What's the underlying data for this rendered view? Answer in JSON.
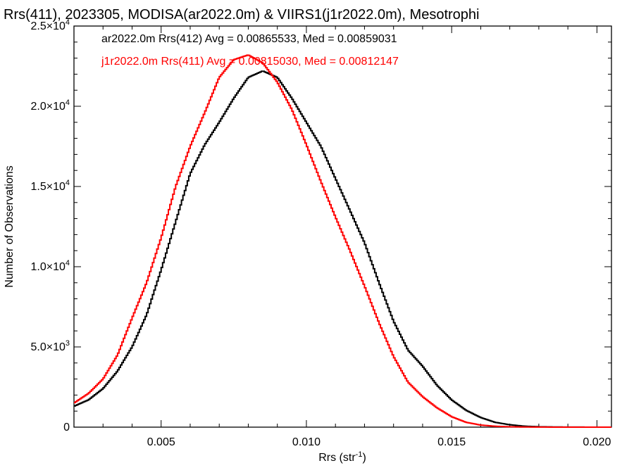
{
  "chart_data": {
    "type": "line",
    "title": "Rrs(411), 2023305, MODISA(ar2022.0m) & VIIRS1(j1r2022.0m), Mesotrophi",
    "xlabel": "Rrs (str",
    "xlabel_sup": "-1",
    "xlabel_end": ")",
    "ylabel": "Number of Observations",
    "xlim": [
      0.002,
      0.0205
    ],
    "ylim": [
      0,
      25000
    ],
    "x_ticks": [
      0.005,
      0.01,
      0.015,
      0.02
    ],
    "x_tick_labels": [
      "0.005",
      "0.010",
      "0.015",
      "0.020"
    ],
    "y_ticks": [
      0,
      5000,
      10000,
      15000,
      20000,
      25000
    ],
    "y_tick_labels": [
      {
        "mant": "0",
        "exp": ""
      },
      {
        "mant": "5.0×10",
        "exp": "3"
      },
      {
        "mant": "1.0×10",
        "exp": "4"
      },
      {
        "mant": "1.5×10",
        "exp": "4"
      },
      {
        "mant": "2.0×10",
        "exp": "4"
      },
      {
        "mant": "2.5×10",
        "exp": "4"
      }
    ],
    "grid": false,
    "legend_placement": "top-left",
    "series": [
      {
        "name": "ar2022.0m Rrs(412) Avg = 0.00865533, Med = 0.00859031",
        "color": "#000000",
        "x": [
          0.002,
          0.0025,
          0.003,
          0.0035,
          0.004,
          0.0045,
          0.005,
          0.0055,
          0.006,
          0.0065,
          0.007,
          0.0075,
          0.008,
          0.0085,
          0.009,
          0.0095,
          0.01,
          0.0105,
          0.011,
          0.0115,
          0.012,
          0.0125,
          0.013,
          0.0135,
          0.014,
          0.0145,
          0.015,
          0.0155,
          0.016,
          0.0165,
          0.017,
          0.0175,
          0.018,
          0.0185,
          0.019,
          0.0195,
          0.02,
          0.0205
        ],
        "y": [
          1300,
          1700,
          2400,
          3500,
          5000,
          7000,
          9800,
          12800,
          15800,
          17600,
          19000,
          20500,
          21800,
          22200,
          21800,
          20500,
          19000,
          17500,
          15500,
          13500,
          11500,
          9000,
          6600,
          4800,
          3800,
          2600,
          1700,
          1050,
          600,
          300,
          150,
          60,
          25,
          12,
          6,
          3,
          2,
          0
        ]
      },
      {
        "name": "j1r2022.0m Rrs(411) Avg = 0.00815030, Med = 0.00812147",
        "color": "#ff0000",
        "x": [
          0.002,
          0.0025,
          0.003,
          0.0035,
          0.004,
          0.0045,
          0.005,
          0.0055,
          0.006,
          0.0065,
          0.007,
          0.0075,
          0.008,
          0.0085,
          0.009,
          0.0095,
          0.01,
          0.0105,
          0.011,
          0.0115,
          0.012,
          0.0125,
          0.013,
          0.0135,
          0.014,
          0.0145,
          0.015,
          0.0155,
          0.016,
          0.0165,
          0.017,
          0.0175,
          0.018,
          0.0185,
          0.019,
          0.0195,
          0.02,
          0.0205
        ],
        "y": [
          1500,
          2100,
          3000,
          4500,
          6800,
          9000,
          11800,
          15000,
          17500,
          19600,
          21800,
          22900,
          23200,
          22700,
          21500,
          19800,
          17600,
          15300,
          13100,
          11000,
          8800,
          6500,
          4400,
          2800,
          1900,
          1200,
          650,
          300,
          130,
          55,
          25,
          10,
          5,
          2,
          1,
          0,
          0,
          0
        ]
      }
    ]
  }
}
